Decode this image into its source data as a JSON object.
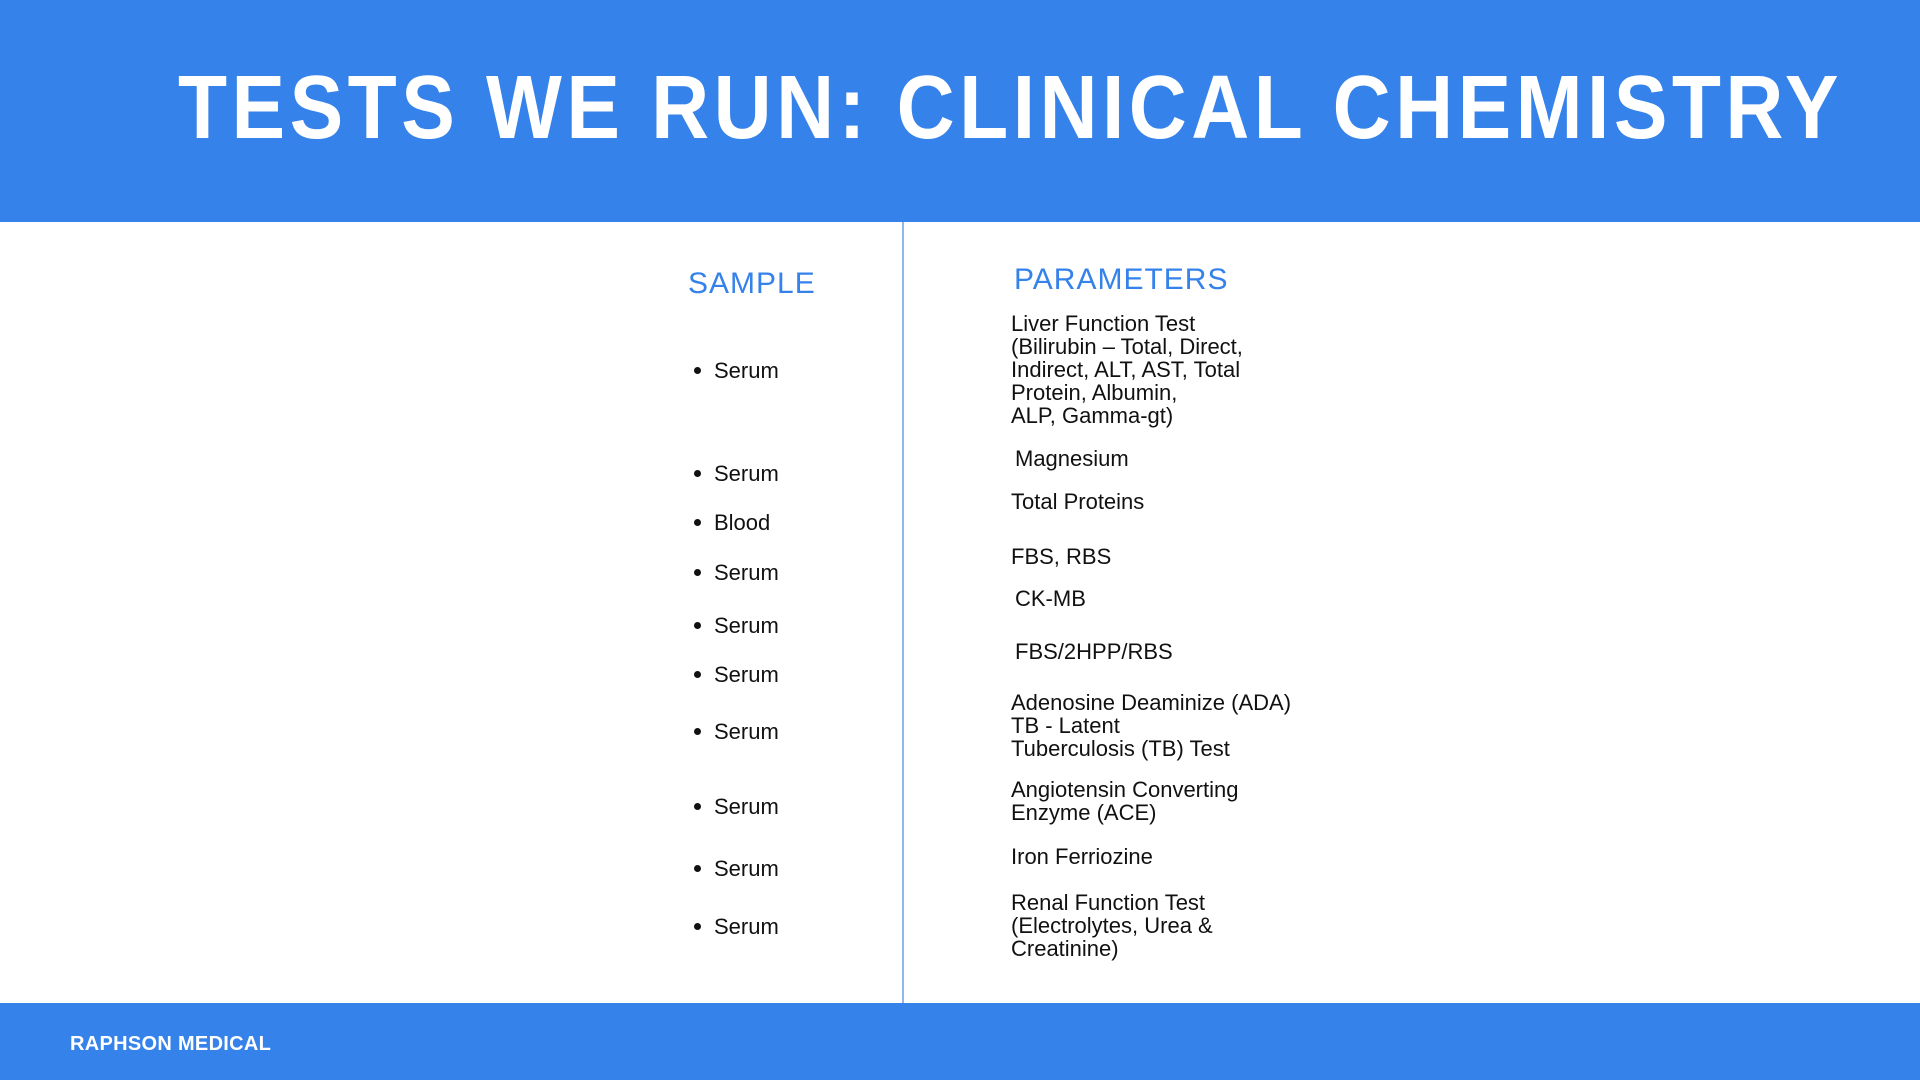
{
  "header": {
    "title": "TESTS WE RUN: CLINICAL CHEMISTRY"
  },
  "columns": {
    "sample": "SAMPLE",
    "parameters": "PARAMETERS"
  },
  "samples": [
    "Serum",
    "Serum",
    "Blood",
    "Serum",
    "Serum",
    "Serum",
    "Serum",
    "Serum",
    "Serum",
    "Serum"
  ],
  "parameters": [
    "Liver Function Test\n(Bilirubin – Total, Direct,\nIndirect, ALT, AST, Total\nProtein, Albumin,\nALP, Gamma-gt)",
    "Magnesium",
    "Total Proteins",
    "FBS, RBS",
    "CK-MB",
    "FBS/2HPP/RBS",
    "Adenosine Deaminize (ADA)\nTB - Latent\nTuberculosis (TB) Test",
    "Angiotensin Converting\nEnzyme (ACE)",
    "Iron Ferriozine",
    "Renal Function Test\n(Electrolytes, Urea &\nCreatinine)"
  ],
  "footer": {
    "brand": "RAPHSON MEDICAL"
  },
  "colors": {
    "accent": "#3582ea",
    "divider": "#8fb8f3"
  }
}
